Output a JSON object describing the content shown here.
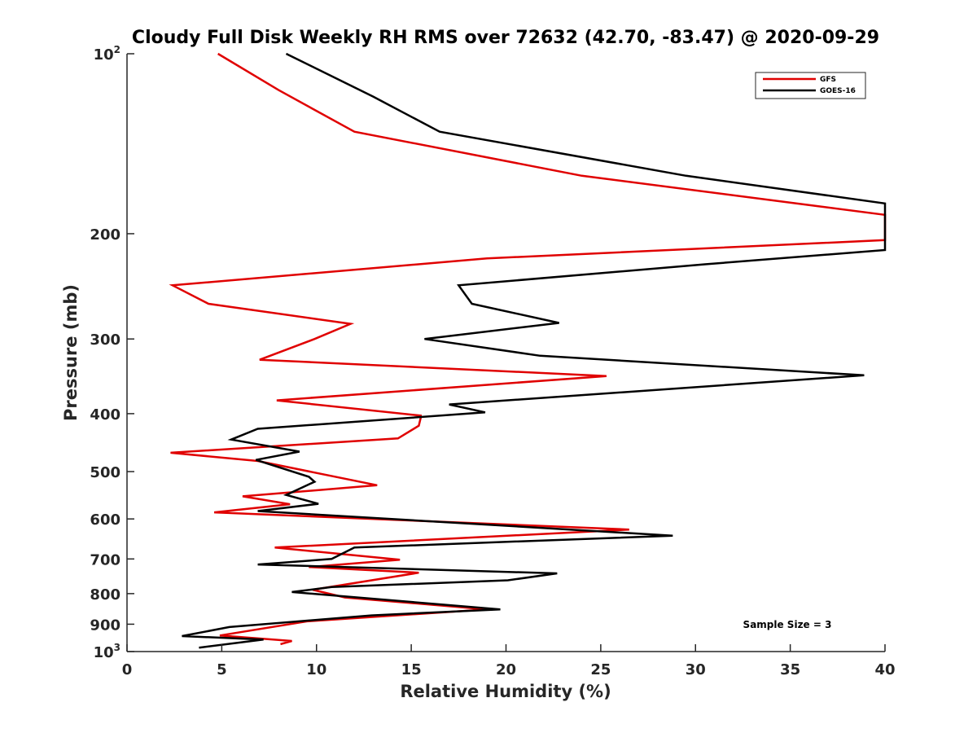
{
  "chart_data": {
    "type": "line",
    "title": "Cloudy Full Disk Weekly RH RMS over 72632 (42.70, -83.47) @ 2020-09-29",
    "xlabel": "Relative Humidity (%)",
    "ylabel": "Pressure (mb)",
    "xlim": [
      0,
      40
    ],
    "ylim": [
      100,
      1000
    ],
    "y_scale": "log",
    "y_reversed": true,
    "grid": false,
    "legend_position": "top-right",
    "x_ticks": [
      "0",
      "5",
      "10",
      "15",
      "20",
      "25",
      "30",
      "35",
      "40"
    ],
    "y_ticks": [
      {
        "value": 100,
        "base": "10",
        "exp": "2"
      },
      {
        "value": 200,
        "label": "200"
      },
      {
        "value": 300,
        "label": "300"
      },
      {
        "value": 400,
        "label": "400"
      },
      {
        "value": 500,
        "label": "500"
      },
      {
        "value": 600,
        "label": "600"
      },
      {
        "value": 700,
        "label": "700"
      },
      {
        "value": 800,
        "label": "800"
      },
      {
        "value": 900,
        "label": "900"
      },
      {
        "value": 1000,
        "base": "10",
        "exp": "3"
      }
    ],
    "annotation": "Sample Size = 3",
    "series": [
      {
        "name": "GFS",
        "color": "#e00000",
        "points": [
          [
            4.8,
            100
          ],
          [
            8.0,
            115
          ],
          [
            12.0,
            135
          ],
          [
            24.0,
            160
          ],
          [
            40.0,
            186
          ],
          [
            40.0,
            205
          ],
          [
            19.0,
            220
          ],
          [
            2.4,
            244
          ],
          [
            4.3,
            262
          ],
          [
            11.8,
            283
          ],
          [
            9.9,
            300
          ],
          [
            7.0,
            325
          ],
          [
            25.3,
            346
          ],
          [
            7.9,
            380
          ],
          [
            15.5,
            403
          ],
          [
            15.5,
            406
          ],
          [
            15.4,
            419
          ],
          [
            14.3,
            440
          ],
          [
            2.3,
            465
          ],
          [
            6.9,
            480
          ],
          [
            13.2,
            527
          ],
          [
            6.1,
            550
          ],
          [
            8.6,
            567
          ],
          [
            4.6,
            585
          ],
          [
            26.5,
            625
          ],
          [
            7.8,
            670
          ],
          [
            14.4,
            702
          ],
          [
            9.6,
            722
          ],
          [
            15.4,
            738
          ],
          [
            9.8,
            788
          ],
          [
            11.5,
            812
          ],
          [
            19.0,
            850
          ],
          [
            9.5,
            890
          ],
          [
            4.9,
            940
          ],
          [
            8.7,
            960
          ],
          [
            8.1,
            972
          ]
        ]
      },
      {
        "name": "GOES-16",
        "color": "#000000",
        "points": [
          [
            8.4,
            100
          ],
          [
            13.0,
            118
          ],
          [
            16.5,
            135
          ],
          [
            29.5,
            160
          ],
          [
            40.0,
            178
          ],
          [
            40.0,
            213
          ],
          [
            30.5,
            225
          ],
          [
            17.5,
            244
          ],
          [
            18.2,
            262
          ],
          [
            22.8,
            282
          ],
          [
            15.7,
            300
          ],
          [
            21.8,
            320
          ],
          [
            38.9,
            345
          ],
          [
            17.0,
            386
          ],
          [
            18.9,
            398
          ],
          [
            6.9,
            424
          ],
          [
            5.5,
            442
          ],
          [
            9.1,
            463
          ],
          [
            6.8,
            478
          ],
          [
            9.6,
            510
          ],
          [
            9.9,
            520
          ],
          [
            8.4,
            547
          ],
          [
            10.1,
            566
          ],
          [
            6.9,
            582
          ],
          [
            28.8,
            640
          ],
          [
            12.0,
            670
          ],
          [
            10.8,
            700
          ],
          [
            6.9,
            715
          ],
          [
            22.7,
            740
          ],
          [
            20.1,
            760
          ],
          [
            10.8,
            780
          ],
          [
            8.7,
            795
          ],
          [
            19.7,
            850
          ],
          [
            12.9,
            870
          ],
          [
            5.4,
            910
          ],
          [
            2.9,
            942
          ],
          [
            7.2,
            955
          ],
          [
            3.8,
            985
          ]
        ]
      }
    ]
  }
}
